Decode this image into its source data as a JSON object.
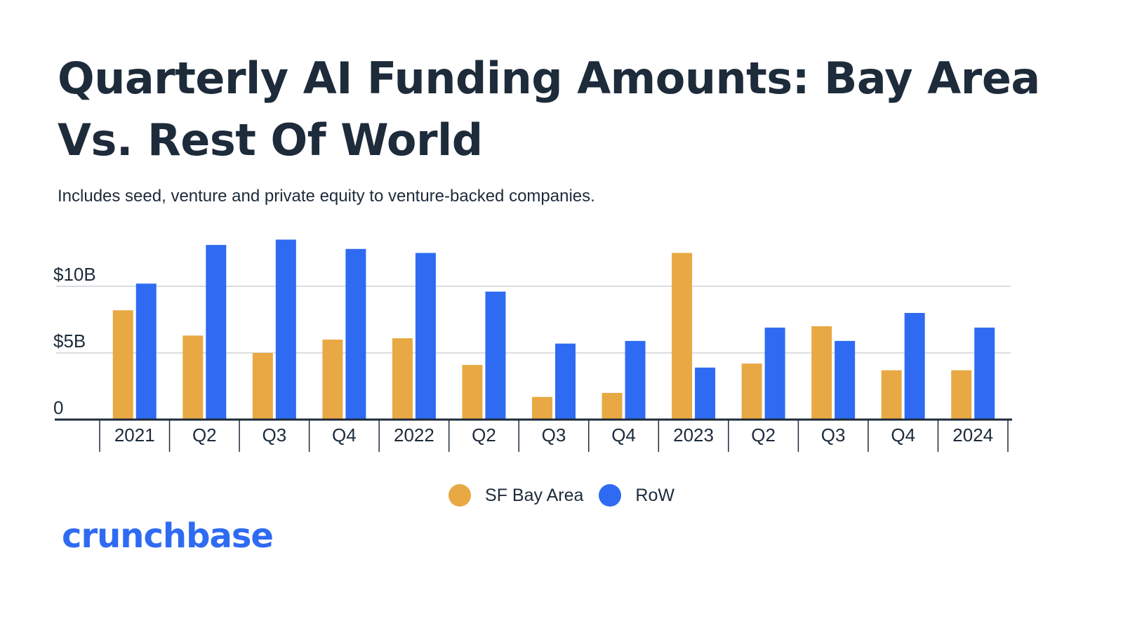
{
  "title": "Quarterly AI Funding Amounts: Bay Area Vs. Rest Of World",
  "subtitle": "Includes seed, venture and private equity to venture-backed companies.",
  "logo": "crunchbase",
  "colors": {
    "bay_area": "#E8A944",
    "row": "#2F6BF2",
    "text": "#1d2b3a",
    "logo": "#2F6BF2",
    "grid": "#cfd2d6",
    "axis": "#1d2b3a"
  },
  "chart_data": {
    "type": "bar",
    "categories": [
      "2021",
      "Q2",
      "Q3",
      "Q4",
      "2022",
      "Q2",
      "Q3",
      "Q4",
      "2023",
      "Q2",
      "Q3",
      "Q4",
      "2024"
    ],
    "series": [
      {
        "name": "SF Bay Area",
        "values": [
          8.2,
          6.3,
          5.0,
          6.0,
          6.1,
          4.1,
          1.7,
          2.0,
          12.5,
          4.2,
          7.0,
          3.7,
          3.7
        ]
      },
      {
        "name": "RoW",
        "values": [
          10.2,
          13.1,
          13.5,
          12.8,
          12.5,
          9.6,
          5.7,
          5.9,
          3.9,
          6.9,
          5.9,
          8.0,
          6.9
        ]
      }
    ],
    "yticks": [
      {
        "value": 0,
        "label": "0"
      },
      {
        "value": 5,
        "label": "$5B"
      },
      {
        "value": 10,
        "label": "$10B"
      }
    ],
    "ylim": [
      0,
      14
    ],
    "grid": true,
    "legend_position": "bottom-center"
  }
}
